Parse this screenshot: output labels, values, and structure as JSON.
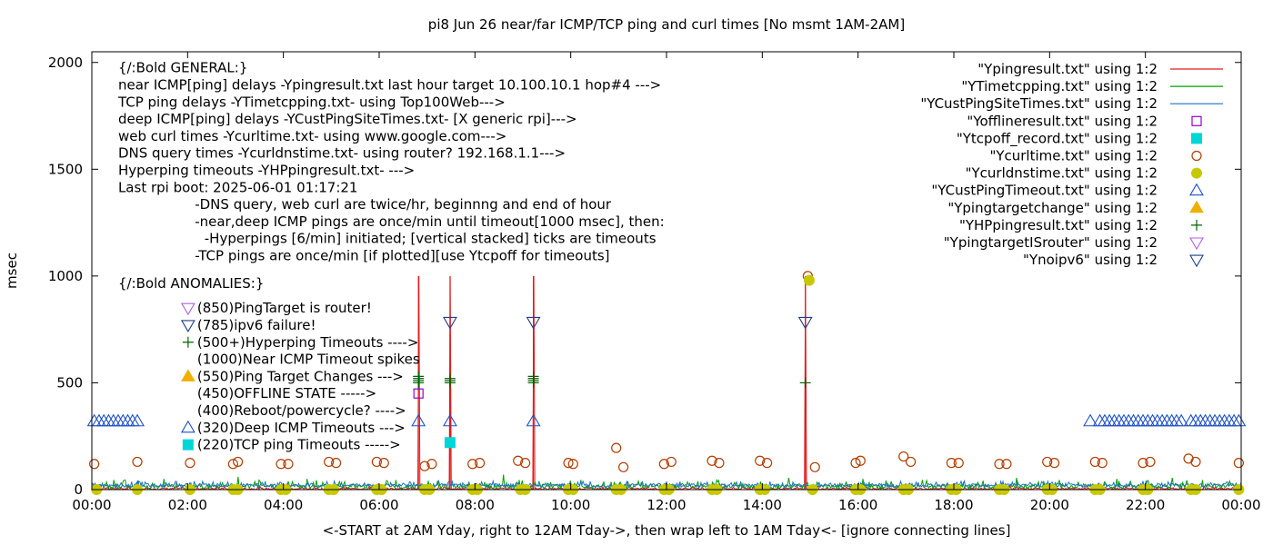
{
  "chart_data": {
    "type": "line",
    "title": "pi8 Jun 26  near/far ICMP/TCP ping and curl times [No msmt 1AM-2AM]",
    "xlabel": "<-START at 2AM Yday, right to 12AM Tday->, then wrap left to 1AM Tday<- [ignore connecting lines]",
    "ylabel": "msec",
    "x_unit": "hours",
    "xlim": [
      0,
      24
    ],
    "ylim": [
      0,
      2050
    ],
    "x_ticks": [
      {
        "v": 0,
        "label": "00:00"
      },
      {
        "v": 2,
        "label": "02:00"
      },
      {
        "v": 4,
        "label": "04:00"
      },
      {
        "v": 6,
        "label": "06:00"
      },
      {
        "v": 8,
        "label": "08:00"
      },
      {
        "v": 10,
        "label": "10:00"
      },
      {
        "v": 12,
        "label": "12:00"
      },
      {
        "v": 14,
        "label": "14:00"
      },
      {
        "v": 16,
        "label": "16:00"
      },
      {
        "v": 18,
        "label": "18:00"
      },
      {
        "v": 20,
        "label": "20:00"
      },
      {
        "v": 22,
        "label": "22:00"
      },
      {
        "v": 24,
        "label": "00:00"
      }
    ],
    "y_ticks": [
      {
        "v": 0,
        "label": "0"
      },
      {
        "v": 500,
        "label": "500"
      },
      {
        "v": 1000,
        "label": "1000"
      },
      {
        "v": 1500,
        "label": "1500"
      },
      {
        "v": 2000,
        "label": "2000"
      }
    ],
    "grid": false,
    "legend_position": "top-right",
    "series": [
      {
        "name": "\"Ypingresult.txt\" using 1:2",
        "type": "line",
        "color": "#e41a1c",
        "baseline": [
          0,
          8,
          16
        ],
        "spikes": [
          [
            6.82,
            1000
          ],
          [
            7.48,
            1000
          ],
          [
            9.22,
            1000
          ],
          [
            14.9,
            1000
          ]
        ]
      },
      {
        "name": "\"YTimetcpping.txt\" using 1:2",
        "type": "line",
        "color": "#00a000",
        "baseline": [
          5,
          25,
          45
        ],
        "spikes": [
          [
            0.45,
            45
          ],
          [
            1.5,
            50
          ],
          [
            3.05,
            60
          ],
          [
            4.5,
            50
          ],
          [
            6.35,
            45
          ],
          [
            8.6,
            70
          ],
          [
            10.2,
            45
          ],
          [
            11.4,
            40
          ],
          [
            13.05,
            45
          ],
          [
            14.55,
            55
          ],
          [
            16.1,
            50
          ],
          [
            17.35,
            45
          ],
          [
            19.3,
            55
          ],
          [
            20.2,
            45
          ],
          [
            21.4,
            50
          ],
          [
            22.55,
            55
          ],
          [
            23.2,
            45
          ],
          [
            23.75,
            40
          ]
        ]
      },
      {
        "name": "\"YCustPingSiteTimes.txt\" using 1:2",
        "type": "line",
        "color": "#1e70c8",
        "baseline": [
          12,
          28,
          40
        ]
      },
      {
        "name": "\"Yofflineresult.txt\" using 1:2",
        "type": "point",
        "marker": "square",
        "color": "#9400d3",
        "points": [
          [
            6.82,
            450
          ]
        ]
      },
      {
        "name": "\"Ytcpoff_record.txt\" using 1:2",
        "type": "point",
        "marker": "square-filled",
        "color": "#00d6d6",
        "points": [
          [
            7.48,
            220
          ]
        ]
      },
      {
        "name": "\"Ycurltime.txt\" using 1:2",
        "type": "point",
        "marker": "circle",
        "color": "#b23c00",
        "points": [
          [
            0.05,
            120
          ],
          [
            0.95,
            130
          ],
          [
            2.05,
            125
          ],
          [
            2.95,
            120
          ],
          [
            3.05,
            130
          ],
          [
            3.95,
            120
          ],
          [
            4.1,
            120
          ],
          [
            4.95,
            130
          ],
          [
            5.1,
            125
          ],
          [
            5.95,
            130
          ],
          [
            6.1,
            125
          ],
          [
            6.95,
            110
          ],
          [
            7.1,
            120
          ],
          [
            7.95,
            120
          ],
          [
            8.1,
            125
          ],
          [
            8.9,
            135
          ],
          [
            9.05,
            125
          ],
          [
            9.95,
            125
          ],
          [
            10.05,
            120
          ],
          [
            10.95,
            195
          ],
          [
            11.1,
            105
          ],
          [
            11.95,
            120
          ],
          [
            12.1,
            130
          ],
          [
            12.95,
            135
          ],
          [
            13.1,
            125
          ],
          [
            13.95,
            135
          ],
          [
            14.1,
            125
          ],
          [
            14.95,
            1000
          ],
          [
            15.1,
            105
          ],
          [
            15.95,
            125
          ],
          [
            16.05,
            135
          ],
          [
            16.95,
            155
          ],
          [
            17.1,
            130
          ],
          [
            17.95,
            125
          ],
          [
            18.1,
            125
          ],
          [
            18.95,
            120
          ],
          [
            19.1,
            120
          ],
          [
            19.95,
            130
          ],
          [
            20.1,
            125
          ],
          [
            20.95,
            130
          ],
          [
            21.1,
            125
          ],
          [
            21.95,
            125
          ],
          [
            22.1,
            130
          ],
          [
            22.9,
            145
          ],
          [
            23.05,
            130
          ],
          [
            23.95,
            125
          ]
        ]
      },
      {
        "name": "\"Ycurldnstime.txt\" using 1:2",
        "type": "point",
        "marker": "circle-filled",
        "color": "#c8c800",
        "points": [
          [
            0.1,
            0
          ],
          [
            0.95,
            0
          ],
          [
            2.05,
            0
          ],
          [
            2.95,
            0
          ],
          [
            3.05,
            0
          ],
          [
            3.95,
            0
          ],
          [
            4.05,
            0
          ],
          [
            4.95,
            0
          ],
          [
            5.05,
            0
          ],
          [
            5.95,
            0
          ],
          [
            6.05,
            0
          ],
          [
            6.95,
            0
          ],
          [
            7.05,
            0
          ],
          [
            7.95,
            0
          ],
          [
            8.05,
            0
          ],
          [
            8.95,
            0
          ],
          [
            9.05,
            0
          ],
          [
            9.95,
            0
          ],
          [
            10.05,
            0
          ],
          [
            10.95,
            0
          ],
          [
            11.05,
            0
          ],
          [
            11.95,
            0
          ],
          [
            12.05,
            0
          ],
          [
            12.95,
            0
          ],
          [
            13.05,
            0
          ],
          [
            13.95,
            0
          ],
          [
            14.05,
            0
          ],
          [
            14.98,
            980
          ],
          [
            15.05,
            0
          ],
          [
            15.95,
            0
          ],
          [
            16.05,
            0
          ],
          [
            16.95,
            0
          ],
          [
            17.05,
            0
          ],
          [
            17.95,
            0
          ],
          [
            18.05,
            0
          ],
          [
            18.95,
            0
          ],
          [
            19.05,
            0
          ],
          [
            19.95,
            0
          ],
          [
            20.05,
            0
          ],
          [
            20.95,
            0
          ],
          [
            21.05,
            0
          ],
          [
            21.95,
            0
          ],
          [
            22.05,
            0
          ],
          [
            22.95,
            0
          ],
          [
            23.05,
            0
          ],
          [
            23.95,
            0
          ]
        ]
      },
      {
        "name": "\"YCustPingTimeout.txt\" using 1:2",
        "type": "point",
        "marker": "triangle-up",
        "color": "#1e50c8",
        "points": [
          [
            0.05,
            320
          ],
          [
            0.15,
            320
          ],
          [
            0.25,
            320
          ],
          [
            0.35,
            320
          ],
          [
            0.45,
            320
          ],
          [
            0.55,
            320
          ],
          [
            0.65,
            320
          ],
          [
            0.75,
            320
          ],
          [
            0.85,
            320
          ],
          [
            0.95,
            320
          ],
          [
            6.82,
            320
          ],
          [
            7.48,
            320
          ],
          [
            9.22,
            320
          ],
          [
            20.85,
            320
          ],
          [
            21.05,
            320
          ],
          [
            21.15,
            320
          ],
          [
            21.25,
            320
          ],
          [
            21.35,
            320
          ],
          [
            21.45,
            320
          ],
          [
            21.55,
            320
          ],
          [
            21.65,
            320
          ],
          [
            21.75,
            320
          ],
          [
            21.85,
            320
          ],
          [
            21.95,
            320
          ],
          [
            22.05,
            320
          ],
          [
            22.15,
            320
          ],
          [
            22.25,
            320
          ],
          [
            22.35,
            320
          ],
          [
            22.45,
            320
          ],
          [
            22.55,
            320
          ],
          [
            22.65,
            320
          ],
          [
            22.75,
            320
          ],
          [
            22.95,
            320
          ],
          [
            23.05,
            320
          ],
          [
            23.15,
            320
          ],
          [
            23.25,
            320
          ],
          [
            23.35,
            320
          ],
          [
            23.45,
            320
          ],
          [
            23.55,
            320
          ],
          [
            23.65,
            320
          ],
          [
            23.75,
            320
          ],
          [
            23.85,
            320
          ],
          [
            23.95,
            320
          ]
        ]
      },
      {
        "name": "\"Ypingtargetchange\" using 1:2",
        "type": "point",
        "marker": "triangle-up-filled",
        "color": "#f0b000",
        "points": []
      },
      {
        "name": "\"YHPpingresult.txt\" using 1:2",
        "type": "point",
        "marker": "plus",
        "color": "#006400",
        "points": [
          [
            6.82,
            500
          ],
          [
            6.82,
            510
          ],
          [
            6.82,
            520
          ],
          [
            6.82,
            530
          ],
          [
            7.48,
            500
          ],
          [
            7.48,
            510
          ],
          [
            7.48,
            520
          ],
          [
            9.22,
            500
          ],
          [
            9.22,
            510
          ],
          [
            9.22,
            520
          ],
          [
            9.22,
            530
          ],
          [
            14.9,
            500
          ]
        ]
      },
      {
        "name": "\"YpingtargetISrouter\" using 1:2",
        "type": "point",
        "marker": "triangle-down",
        "color": "#b060e0",
        "points": []
      },
      {
        "name": "\"Ynoipv6\" using 1:2",
        "type": "point",
        "marker": "triangle-down",
        "color": "#1e3c8c",
        "points": [
          [
            7.48,
            785
          ],
          [
            9.22,
            785
          ],
          [
            14.9,
            785
          ]
        ]
      }
    ],
    "annotations": [
      {
        "text": "{/:Bold GENERAL:}",
        "x": 0.55,
        "y": 1975
      },
      {
        "text": "near ICMP[ping] delays -Ypingresult.txt last hour target 10.100.10.1 hop#4 --->",
        "x": 0.55,
        "y": 1895
      },
      {
        "text": "TCP ping delays -YTimetcpping.txt- using Top100Web--->",
        "x": 0.55,
        "y": 1815
      },
      {
        "text": "deep ICMP[ping] delays -YCustPingSiteTimes.txt- [X generic rpi]--->",
        "x": 0.55,
        "y": 1735
      },
      {
        "text": "web curl times -Ycurltime.txt- using www.google.com--->",
        "x": 0.55,
        "y": 1655
      },
      {
        "text": "DNS query times -Ycurldnstime.txt- using router? 192.168.1.1--->",
        "x": 0.55,
        "y": 1575
      },
      {
        "text": "Hyperping timeouts -YHPpingresult.txt- --->",
        "x": 0.55,
        "y": 1495
      },
      {
        "text": "Last rpi boot: 2025-06-01 01:17:21",
        "x": 0.55,
        "y": 1415
      },
      {
        "text": "-DNS query, web curl are twice/hr, beginnng and end of hour",
        "x": 2.15,
        "y": 1335
      },
      {
        "text": "-near,deep ICMP pings are once/min until timeout[1000 msec], then:",
        "x": 2.15,
        "y": 1255
      },
      {
        "text": "-Hyperpings [6/min] initiated; [vertical stacked] ticks are timeouts",
        "x": 2.35,
        "y": 1175
      },
      {
        "text": "-TCP pings are once/min [if plotted][use Ytcpoff for timeouts]",
        "x": 2.15,
        "y": 1095
      },
      {
        "text": "{/:Bold ANOMALIES:}",
        "x": 0.55,
        "y": 965
      },
      {
        "text": "(850)PingTarget is router!",
        "x": 2.2,
        "y": 850,
        "marker": "triangle-down",
        "color": "#b060e0"
      },
      {
        "text": "(785)ipv6 failure!",
        "x": 2.2,
        "y": 770,
        "marker": "triangle-down",
        "color": "#1e3c8c"
      },
      {
        "text": "(500+)Hyperping Timeouts ---->",
        "x": 2.2,
        "y": 690,
        "marker": "plus",
        "color": "#006400"
      },
      {
        "text": "(1000)Near ICMP Timeout spikes",
        "x": 2.2,
        "y": 610
      },
      {
        "text": "(550)Ping Target Changes --->",
        "x": 2.2,
        "y": 530,
        "marker": "triangle-up-filled",
        "color": "#f0b000"
      },
      {
        "text": "(450)OFFLINE STATE ----->",
        "x": 2.2,
        "y": 450
      },
      {
        "text": "(400)Reboot/powercycle? ---->",
        "x": 2.2,
        "y": 370
      },
      {
        "text": "(320)Deep ICMP Timeouts --->",
        "x": 2.2,
        "y": 290,
        "marker": "triangle-up",
        "color": "#1e50c8"
      },
      {
        "text": "(220)TCP ping Timeouts ----->",
        "x": 2.2,
        "y": 210,
        "marker": "square-filled",
        "color": "#00d6d6"
      }
    ]
  }
}
